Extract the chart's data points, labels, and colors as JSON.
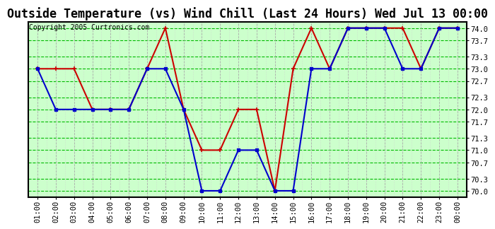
{
  "title": "Outside Temperature (vs) Wind Chill (Last 24 Hours) Wed Jul 13 00:00",
  "copyright": "Copyright 2005 Curtronics.com",
  "x_labels": [
    "01:00",
    "02:00",
    "03:00",
    "04:00",
    "05:00",
    "06:00",
    "07:00",
    "08:00",
    "09:00",
    "10:00",
    "11:00",
    "12:00",
    "13:00",
    "14:00",
    "15:00",
    "16:00",
    "17:00",
    "18:00",
    "19:00",
    "20:00",
    "21:00",
    "22:00",
    "23:00",
    "00:00"
  ],
  "blue_data": [
    73.0,
    72.0,
    72.0,
    72.0,
    72.0,
    72.0,
    73.0,
    73.0,
    72.0,
    70.0,
    70.0,
    71.0,
    71.0,
    70.0,
    70.0,
    73.0,
    73.0,
    74.0,
    74.0,
    74.0,
    73.0,
    73.0,
    74.0,
    74.0
  ],
  "red_data": [
    73.0,
    73.0,
    73.0,
    72.0,
    72.0,
    72.0,
    73.0,
    74.0,
    72.0,
    71.0,
    71.0,
    72.0,
    72.0,
    70.0,
    73.0,
    74.0,
    73.0,
    74.0,
    74.0,
    74.0,
    74.0,
    73.0,
    74.0,
    74.0
  ],
  "blue_color": "#0000cc",
  "red_color": "#cc0000",
  "plot_bg": "#ccffcc",
  "grid_h_color": "#00bb00",
  "grid_v_major_color": "#aaaaaa",
  "grid_v_minor_color": "#cccccc",
  "border_color": "#000000",
  "fig_bg": "#ffffff",
  "ylim_min": 69.85,
  "ylim_max": 74.15,
  "yticks": [
    70.0,
    70.3,
    70.7,
    71.0,
    71.3,
    71.7,
    72.0,
    72.3,
    72.7,
    73.0,
    73.3,
    73.7,
    74.0
  ],
  "title_fontsize": 12,
  "tick_fontsize": 7.5,
  "copyright_fontsize": 7
}
